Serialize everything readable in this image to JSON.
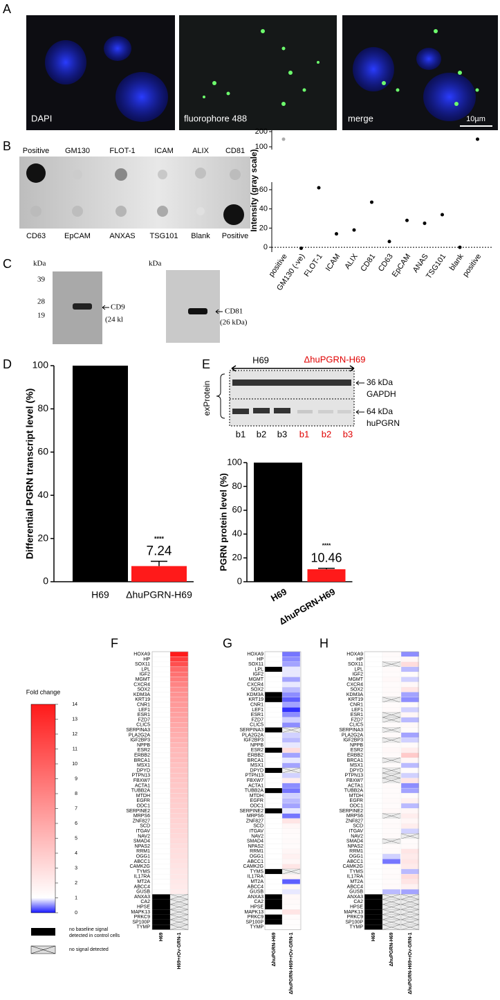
{
  "figure": {
    "panel_labels": [
      "A",
      "B",
      "C",
      "D",
      "E",
      "F",
      "G",
      "H"
    ],
    "microscopy_labels": [
      "DAPI",
      "fluorophore 488",
      "merge"
    ],
    "scale_bar": "10µm",
    "dot_blot_top": [
      "Positive",
      "GM130",
      "FLOT-1",
      "ICAM",
      "ALIX",
      "CD81"
    ],
    "dot_blot_bottom": [
      "CD63",
      "EpCAM",
      "ANXAS",
      "TSG101",
      "Blank",
      "Positive"
    ],
    "western_left": {
      "unit": "kDa",
      "markers": [
        "39",
        "28",
        "19"
      ],
      "band": "CD9",
      "band_size": "(24 kl"
    },
    "western_right": {
      "unit": "kDa",
      "band": "CD81",
      "band_size": "(26 kDa)"
    },
    "blot_e": {
      "group_left": "H69",
      "group_right": "ΔhuPGRN-H69",
      "side_label": "exProtein",
      "band_top": "36 kDa",
      "band_top_name": "GAPDH",
      "band_bottom": "64 kDa",
      "band_bottom_name": "huPGRN",
      "lanes_left": [
        "b1",
        "b2",
        "b3"
      ],
      "lanes_right": [
        "b1",
        "b2",
        "b3"
      ]
    }
  },
  "chart_data": [
    {
      "type": "scatter",
      "y_label": "Intensity (gray scale)",
      "categories": [
        "positive",
        "GM130 (-ve)",
        "FLOT-1",
        "ICAM",
        "ALIX",
        "CD81",
        "CD63",
        "EpCAM",
        "ANAS",
        "TSG101",
        "blank",
        "positive"
      ],
      "values": [
        150,
        -1,
        62,
        14,
        18,
        47,
        6,
        28,
        25,
        34,
        0,
        150
      ],
      "point_colors": [
        "#aaaaaa",
        "#000000",
        "#000000",
        "#000000",
        "#000000",
        "#000000",
        "#000000",
        "#000000",
        "#000000",
        "#000000",
        "#000000",
        "#000000"
      ],
      "ylim": [
        -5,
        200
      ],
      "axis_break": [
        65,
        100
      ],
      "yticks": [
        0,
        20,
        40,
        60,
        100,
        200
      ],
      "hline": 0
    },
    {
      "type": "bar",
      "y_label": "Differential PGRN transcript level  (%)",
      "categories": [
        "H69",
        "ΔhuPGRN-H69"
      ],
      "values": [
        100,
        7.24
      ],
      "errors": [
        0,
        2.2
      ],
      "value_labels": [
        null,
        "7.24"
      ],
      "annotations": [
        null,
        "****"
      ],
      "colors": [
        "#000000",
        "#ff1a1a"
      ],
      "ylim": [
        0,
        100
      ],
      "yticks": [
        0,
        20,
        40,
        60,
        80,
        100
      ]
    },
    {
      "type": "bar",
      "y_label": "PGRN protein level (%)",
      "categories": [
        "H69",
        "ΔhuPGRN-H69"
      ],
      "values": [
        100,
        10.46
      ],
      "errors": [
        0,
        0.8
      ],
      "value_labels": [
        null,
        "10.46"
      ],
      "annotations": [
        null,
        "****"
      ],
      "colors": [
        "#000000",
        "#ff1a1a"
      ],
      "ylim": [
        0,
        100
      ],
      "yticks": [
        0,
        20,
        40,
        60,
        80,
        100
      ]
    },
    {
      "type": "colorbar",
      "title": "Fold change",
      "ticks": [
        0,
        1,
        2,
        3,
        4,
        5,
        6,
        7,
        8,
        9,
        10,
        11,
        12,
        13,
        14
      ],
      "colors": {
        "low": "#1a1aff",
        "mid": "#ffffff",
        "high": "#ff1a1a"
      },
      "mid_value": 1,
      "legend_no_baseline": [
        "no baseline signal",
        "detected in control cells"
      ],
      "legend_no_signal": "no signal detected"
    },
    {
      "type": "heatmap",
      "rows": [
        "HOXA9",
        "HP",
        "SOX11",
        "LPL",
        "IGF2",
        "MGMT",
        "CXCR4",
        "SOX2",
        "KDM3A",
        "KRT19",
        "CNR1",
        "LEF1",
        "ESR1",
        "FZD7",
        "CLIC5",
        "SERPINA3",
        "PLA2G2A",
        "IGF2BP3",
        "NPPB",
        "ESR2",
        "ERBB2",
        "BRCA1",
        "MSX1",
        "DPYD",
        "PTPN13",
        "FBXW7",
        "ACTA1",
        "TUBB2A",
        "MTDH",
        "EGFR",
        "ODC1",
        "SERPINE2",
        "MRPS6",
        "ZNF827",
        "SCD",
        "ITGAV",
        "NAV2",
        "SMAD4",
        "NPAS2",
        "RRM1",
        "OGG1",
        "ABCC1",
        "CAMK2G",
        "TYMS",
        "IL17RA",
        "MT2A",
        "ABCC4",
        "GUSB",
        "ANXA3",
        "CA2",
        "HPSE",
        "MAPK13",
        "PRKC9",
        "SP100P",
        "TYMP"
      ],
      "series": [
        {
          "name": "H69",
          "values": [
            1,
            1,
            1,
            1,
            1,
            1,
            1,
            1,
            1,
            1,
            1,
            1,
            1,
            1,
            1,
            1,
            1,
            1,
            1,
            1,
            1,
            1,
            1,
            1,
            1,
            1,
            1,
            1,
            1,
            1,
            1,
            1,
            1,
            1,
            1,
            1,
            1,
            1,
            1,
            1,
            1,
            1,
            1,
            1,
            1,
            1,
            1,
            1,
            null,
            null,
            null,
            null,
            null,
            null,
            null
          ],
          "no_baseline_rows": [
            48,
            49,
            50,
            51,
            52,
            53,
            54
          ],
          "no_signal_rows": []
        },
        {
          "name": "H69+rOv-GRN-1",
          "values": [
            14,
            12,
            11,
            9.5,
            9,
            8.5,
            8,
            7.5,
            7.2,
            7,
            6.8,
            6.6,
            6.4,
            6.2,
            6,
            5.8,
            5.6,
            5.4,
            5.2,
            5,
            4.9,
            4.8,
            4.6,
            4.5,
            4.4,
            4.3,
            4.2,
            4.1,
            4,
            3.9,
            3.8,
            3.7,
            3.6,
            3.5,
            3.4,
            3.3,
            3.2,
            3.1,
            3,
            2.9,
            2.8,
            2.7,
            2.6,
            2.5,
            2.4,
            2.3,
            2.2,
            2.1,
            null,
            null,
            null,
            null,
            null,
            null,
            null
          ],
          "no_baseline_rows": [],
          "no_signal_rows": [
            48,
            49,
            50,
            51,
            52,
            53,
            54
          ]
        }
      ]
    },
    {
      "type": "heatmap",
      "rows": [
        "HOXA9",
        "HP",
        "SOX11",
        "LPL",
        "IGF2",
        "MGMT",
        "CXCR4",
        "SOX2",
        "KDM3A",
        "KRT19",
        "CNR1",
        "LEF1",
        "ESR1",
        "FZD7",
        "CLIC5",
        "SERPINA3",
        "PLA2G2A",
        "IGF2BP3",
        "NPPB",
        "ESR2",
        "ERBB2",
        "BRCA1",
        "MSX1",
        "DPYD",
        "PTPN13",
        "FBXW7",
        "ACTA1",
        "TUBB2A",
        "MTDH",
        "EGFR",
        "ODC1",
        "SERPINE2",
        "MRPS6",
        "ZNF827",
        "SCD",
        "ITGAV",
        "NAV2",
        "SMAD4",
        "NPAS2",
        "RRM1",
        "OGG1",
        "ABCC1",
        "CAMK2G",
        "TYMS",
        "IL17RA",
        "MT2A",
        "ABCC4",
        "GUSB",
        "ANXA3",
        "CA2",
        "HPSE",
        "MAPK13",
        "PRKC9",
        "SP100P",
        "TYMP"
      ],
      "series": [
        {
          "name": "ΔhuPGRN-H69",
          "values": [
            1,
            1,
            1,
            null,
            1,
            1,
            1,
            1,
            null,
            null,
            1,
            1,
            1,
            1,
            1,
            null,
            1,
            1,
            1,
            null,
            1,
            1,
            1,
            null,
            1,
            1,
            1,
            null,
            1,
            1,
            1,
            null,
            1,
            1,
            1,
            1,
            1,
            1,
            1,
            1,
            1,
            1,
            1,
            null,
            1,
            1,
            1,
            1,
            null,
            null,
            null,
            1,
            null,
            null,
            1
          ],
          "no_baseline_rows": [
            3,
            8,
            9,
            15,
            19,
            23,
            27,
            31,
            43,
            48,
            49,
            50,
            52,
            53
          ],
          "no_signal_rows": []
        },
        {
          "name": "ΔhuPGRN-H69+rOv-GRN-1",
          "values": [
            0.4,
            0.5,
            0.6,
            0.9,
            0.9,
            0.6,
            0.9,
            0.7,
            0.5,
            0.3,
            0.6,
            0.1,
            0.5,
            0.8,
            0.5,
            null,
            0.8,
            0.7,
            0.9,
            3,
            0.6,
            0.9,
            0.6,
            null,
            0.8,
            2,
            0.5,
            0.4,
            0.8,
            0.7,
            0.6,
            0.9,
            0.4,
            2.5,
            1.5,
            1.3,
            1.2,
            1.3,
            1.2,
            1.5,
            1.8,
            1.5,
            2.5,
            null,
            1.6,
            0.3,
            1.5,
            0.9,
            1.4,
            1.3,
            1.2,
            2.5,
            1.2,
            1.1,
            1.1
          ],
          "no_baseline_rows": [],
          "no_signal_rows": [
            15,
            23,
            43
          ]
        }
      ]
    },
    {
      "type": "heatmap",
      "rows": [
        "HOXA9",
        "HP",
        "SOX11",
        "LPL",
        "IGF2",
        "MGMT",
        "CXCR4",
        "SOX2",
        "KDM3A",
        "KRT19",
        "CNR1",
        "LEF1",
        "ESR1",
        "FZD7",
        "CLIC5",
        "SERPINA3",
        "PLA2G2A",
        "IGF2BP3",
        "NPPB",
        "ESR2",
        "ERBB2",
        "BRCA1",
        "MSX1",
        "DPYD",
        "PTPN13",
        "FBXW7",
        "ACTA1",
        "TUBB2A",
        "MTDH",
        "EGFR",
        "ODC1",
        "SERPINE2",
        "MRPS6",
        "ZNF827",
        "SCD",
        "ITGAV",
        "NAV2",
        "SMAD4",
        "NPAS2",
        "RRM1",
        "OGG1",
        "ABCC1",
        "CAMK2G",
        "TYMS",
        "IL17RA",
        "MT2A",
        "ABCC4",
        "GUSB",
        "ANXA3",
        "CA2",
        "HPSE",
        "MAPK13",
        "PRKC9",
        "SP100P",
        "TYMP"
      ],
      "series": [
        {
          "name": "H69",
          "values": [
            1,
            1,
            1,
            1,
            1,
            1,
            1,
            1,
            1,
            1,
            1,
            1,
            1,
            1,
            1,
            1,
            1,
            1,
            1,
            1,
            1,
            1,
            1,
            1,
            1,
            1,
            1,
            1,
            1,
            1,
            1,
            1,
            1,
            1,
            1,
            1,
            1,
            1,
            1,
            1,
            1,
            1,
            1,
            1,
            1,
            1,
            1,
            1,
            null,
            null,
            null,
            null,
            null,
            null,
            null
          ],
          "no_baseline_rows": [
            48,
            49,
            50,
            51,
            52,
            53,
            54
          ],
          "no_signal_rows": []
        },
        {
          "name": "ΔhuPGRN-H69",
          "values": [
            1.3,
            1.2,
            null,
            1.3,
            1.2,
            1.4,
            1.2,
            1.3,
            1.3,
            null,
            1.2,
            1.3,
            null,
            null,
            1.2,
            null,
            1.3,
            null,
            1.2,
            1.4,
            1.3,
            null,
            1.2,
            null,
            null,
            null,
            1.3,
            1.2,
            1.2,
            1.3,
            1.2,
            1.4,
            null,
            1.2,
            1.3,
            1.2,
            1.3,
            null,
            1.2,
            1.3,
            0.8,
            0.4,
            1.3,
            1.2,
            1.3,
            1.2,
            1.3,
            0.7,
            null,
            null,
            null,
            null,
            null,
            null,
            null
          ],
          "no_baseline_rows": [],
          "no_signal_rows": [
            2,
            9,
            12,
            13,
            15,
            17,
            21,
            23,
            24,
            25,
            32,
            37,
            48,
            49,
            50,
            51,
            52,
            53,
            54
          ]
        },
        {
          "name": "ΔhuPGRN-H69+rOv-GRN-1",
          "values": [
            0.5,
            1.5,
            3,
            0.7,
            1.2,
            0.8,
            1.4,
            2.5,
            0.6,
            0.5,
            1.3,
            0.8,
            1.5,
            0.7,
            1.4,
            1.2,
            0.6,
            0.8,
            1.3,
            2,
            4,
            1.5,
            0.7,
            1.2,
            0.8,
            2.5,
            0.5,
            0.6,
            1.2,
            1.8,
            0.7,
            1.5,
            2,
            1.5,
            2,
            0.8,
            null,
            1.2,
            1.3,
            2.5,
            2.2,
            2.5,
            2.2,
            0.7,
            3,
            2.5,
            1.8,
            0.6,
            null,
            null,
            null,
            null,
            null,
            null,
            null
          ],
          "no_baseline_rows": [],
          "no_signal_rows": [
            36,
            48,
            49,
            50,
            51,
            52,
            53,
            54
          ]
        }
      ]
    }
  ]
}
